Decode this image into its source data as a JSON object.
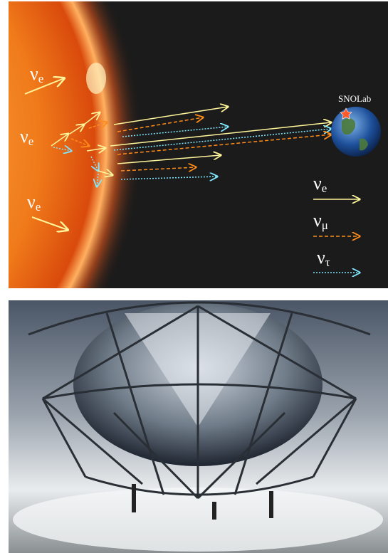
{
  "diagram": {
    "source_labels": [
      {
        "symbol": "ν",
        "sub": "e"
      },
      {
        "symbol": "ν",
        "sub": "e"
      },
      {
        "symbol": "ν",
        "sub": "e"
      }
    ],
    "destination": "SNOLab",
    "legend": [
      {
        "symbol": "ν",
        "sub": "e"
      },
      {
        "symbol": "ν",
        "sub": "μ"
      },
      {
        "symbol": "ν",
        "sub": "τ"
      }
    ]
  }
}
